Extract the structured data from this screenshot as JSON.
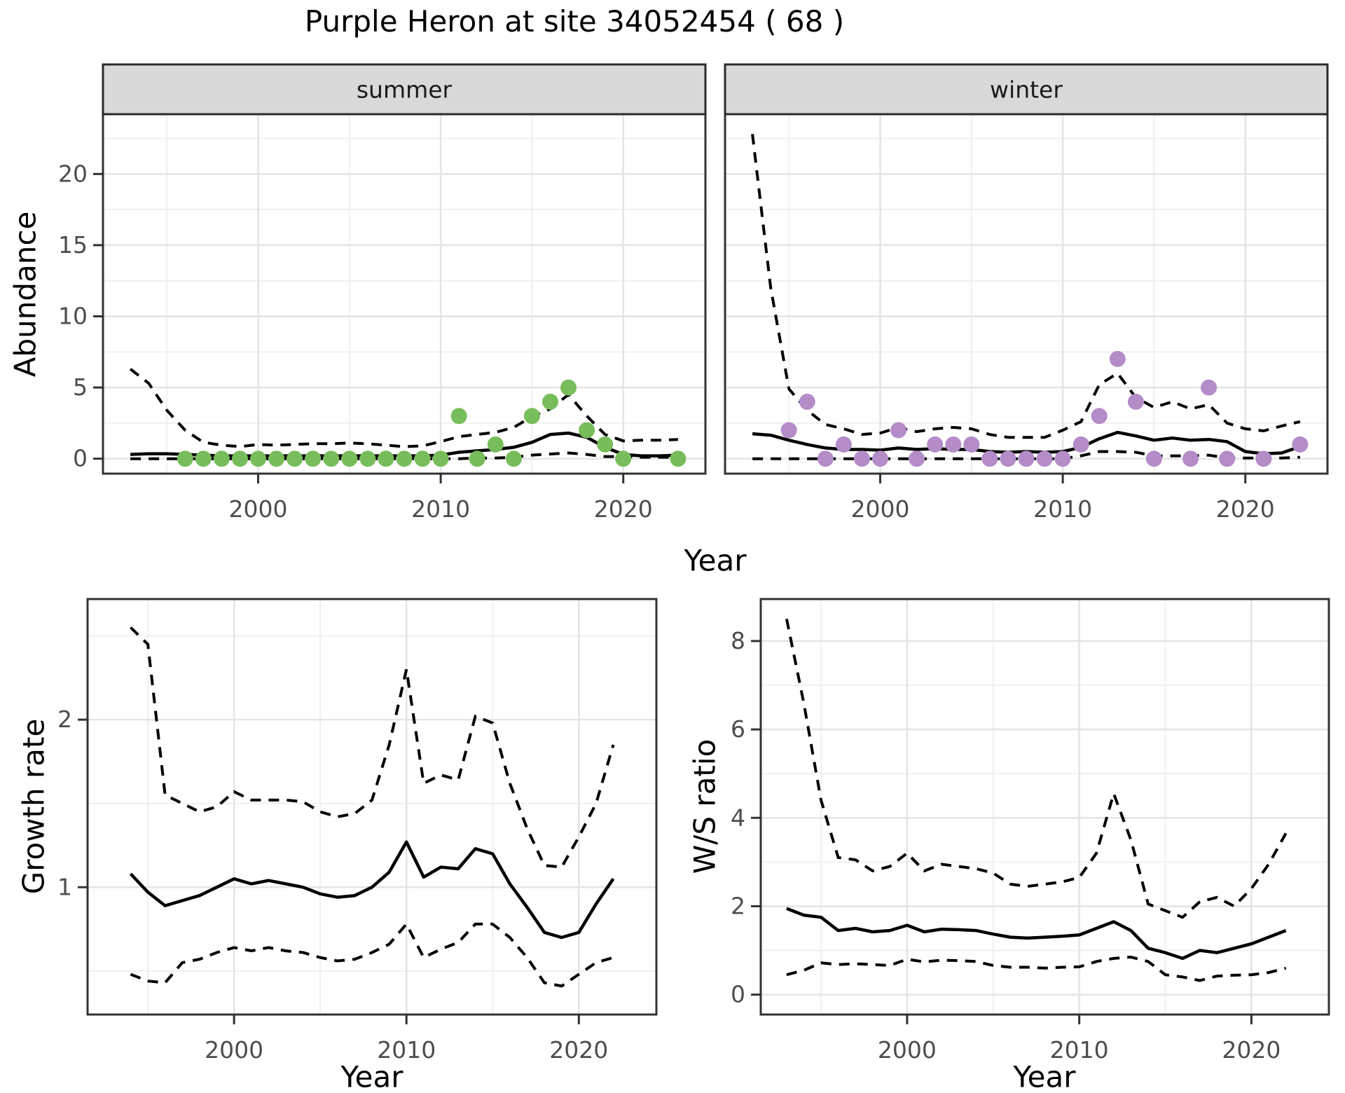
{
  "title": "Purple Heron at site 34052454 ( 68 )",
  "colors": {
    "summer_point": "#77bd5b",
    "winter_point": "#b48cc8",
    "line": "#000000",
    "strip_bg": "#d9d9d9",
    "strip_border": "#2b2b2b",
    "panel_border": "#333333",
    "grid_major": "#e4e4e4",
    "grid_minor": "#f0f0f0",
    "tick_mark": "#333333",
    "tick_label": "#4d4d4d",
    "background": "#ffffff"
  },
  "chart_data": [
    {
      "id": "abundance",
      "type": "line",
      "xlabel": "Year",
      "ylabel": "Abundance",
      "xlim": [
        1991.5,
        2024.5
      ],
      "ylim": [
        -1.05,
        24.2
      ],
      "x_major": [
        2000,
        2010,
        2020
      ],
      "x_minor": [
        1995,
        2005,
        2015
      ],
      "y_major": [
        0,
        5,
        10,
        15,
        20
      ],
      "y_minor": [
        2.5,
        7.5,
        12.5,
        17.5,
        22.5
      ],
      "x_tick_labels": [
        "2000",
        "2010",
        "2020"
      ],
      "y_tick_labels": [
        "0",
        "5",
        "10",
        "15",
        "20"
      ],
      "legend_position": "none",
      "facets": [
        {
          "label": "summer",
          "point_color": "#77bd5b",
          "points": {
            "x": [
              1996,
              1997,
              1998,
              1999,
              2000,
              2001,
              2002,
              2003,
              2004,
              2005,
              2006,
              2007,
              2008,
              2009,
              2010,
              2011,
              2012,
              2013,
              2014,
              2015,
              2016,
              2017,
              2018,
              2019,
              2020,
              2023
            ],
            "y": [
              0,
              0,
              0,
              0,
              0,
              0,
              0,
              0,
              0,
              0,
              0,
              0,
              0,
              0,
              0,
              3,
              0,
              1,
              0,
              3,
              4,
              5,
              2,
              1,
              0,
              0
            ]
          },
          "median": {
            "x": [
              1993,
              1994,
              1995,
              1996,
              1997,
              1998,
              1999,
              2000,
              2001,
              2002,
              2003,
              2004,
              2005,
              2006,
              2007,
              2008,
              2009,
              2010,
              2011,
              2012,
              2013,
              2014,
              2015,
              2016,
              2017,
              2018,
              2019,
              2020,
              2021,
              2022,
              2023
            ],
            "y": [
              0.3,
              0.35,
              0.35,
              0.3,
              0.25,
              0.2,
              0.2,
              0.2,
              0.2,
              0.2,
              0.2,
              0.2,
              0.2,
              0.2,
              0.2,
              0.2,
              0.2,
              0.25,
              0.45,
              0.55,
              0.65,
              0.8,
              1.15,
              1.7,
              1.8,
              1.5,
              0.8,
              0.3,
              0.2,
              0.2,
              0.25
            ]
          },
          "upper": {
            "x": [
              1993,
              1994,
              1995,
              1996,
              1997,
              1998,
              1999,
              2000,
              2001,
              2002,
              2003,
              2004,
              2005,
              2006,
              2007,
              2008,
              2009,
              2010,
              2011,
              2012,
              2013,
              2014,
              2015,
              2016,
              2017,
              2018,
              2019,
              2020,
              2021,
              2022,
              2023
            ],
            "y": [
              6.3,
              5.3,
              3.4,
              2.0,
              1.15,
              0.95,
              0.85,
              1.0,
              0.95,
              1.0,
              1.05,
              1.05,
              1.1,
              1.05,
              0.95,
              0.85,
              0.9,
              1.2,
              1.55,
              1.7,
              1.85,
              2.2,
              2.95,
              3.5,
              4.5,
              3.0,
              1.7,
              1.25,
              1.3,
              1.3,
              1.35
            ]
          },
          "lower": {
            "x": [
              1993,
              1994,
              1995,
              1996,
              1997,
              1998,
              1999,
              2000,
              2001,
              2002,
              2003,
              2004,
              2005,
              2006,
              2007,
              2008,
              2009,
              2010,
              2011,
              2012,
              2013,
              2014,
              2015,
              2016,
              2017,
              2018,
              2019,
              2020,
              2021,
              2022,
              2023
            ],
            "y": [
              0,
              0,
              0,
              0,
              0,
              0,
              0,
              0,
              0,
              0,
              0,
              0,
              0,
              0,
              0,
              0,
              0,
              0,
              0,
              0.05,
              0.05,
              0.1,
              0.25,
              0.33,
              0.4,
              0.3,
              0.15,
              0.15,
              0.1,
              0.1,
              0.1
            ]
          }
        },
        {
          "label": "winter",
          "point_color": "#b48cc8",
          "points": {
            "x": [
              1995,
              1996,
              1997,
              1998,
              1999,
              2000,
              2001,
              2002,
              2003,
              2004,
              2005,
              2006,
              2007,
              2008,
              2009,
              2010,
              2011,
              2012,
              2013,
              2014,
              2015,
              2017,
              2018,
              2019,
              2021,
              2023
            ],
            "y": [
              2,
              4,
              0,
              1,
              0,
              0,
              2,
              0,
              1,
              1,
              1,
              0,
              0,
              0,
              0,
              0,
              1,
              3,
              7,
              4,
              0,
              0,
              5,
              0,
              0,
              1
            ]
          },
          "median": {
            "x": [
              1993,
              1994,
              1995,
              1996,
              1997,
              1998,
              1999,
              2000,
              2001,
              2002,
              2003,
              2004,
              2005,
              2006,
              2007,
              2008,
              2009,
              2010,
              2011,
              2012,
              2013,
              2014,
              2015,
              2016,
              2017,
              2018,
              2019,
              2020,
              2021,
              2022,
              2023
            ],
            "y": [
              1.75,
              1.65,
              1.3,
              1.0,
              0.75,
              0.65,
              0.65,
              0.6,
              0.75,
              0.65,
              0.7,
              0.65,
              0.65,
              0.5,
              0.45,
              0.5,
              0.45,
              0.5,
              0.8,
              1.4,
              1.85,
              1.6,
              1.3,
              1.45,
              1.3,
              1.35,
              1.2,
              0.5,
              0.35,
              0.4,
              0.85
            ]
          },
          "upper": {
            "x": [
              1993,
              1994,
              1995,
              1996,
              1997,
              1998,
              1999,
              2000,
              2001,
              2002,
              2003,
              2004,
              2005,
              2006,
              2007,
              2008,
              2009,
              2010,
              2011,
              2012,
              2013,
              2014,
              2015,
              2016,
              2017,
              2018,
              2019,
              2020,
              2021,
              2022,
              2023
            ],
            "y": [
              22.8,
              12.0,
              4.9,
              3.4,
              2.4,
              2.1,
              1.7,
              1.8,
              2.2,
              1.9,
              2.1,
              2.2,
              2.1,
              1.7,
              1.5,
              1.5,
              1.5,
              2.0,
              2.6,
              5.2,
              6.0,
              4.3,
              3.6,
              4.0,
              3.5,
              3.8,
              2.5,
              2.1,
              1.95,
              2.3,
              2.6
            ]
          },
          "lower": {
            "x": [
              1993,
              1994,
              1995,
              1996,
              1997,
              1998,
              1999,
              2000,
              2001,
              2002,
              2003,
              2004,
              2005,
              2006,
              2007,
              2008,
              2009,
              2010,
              2011,
              2012,
              2013,
              2014,
              2015,
              2016,
              2017,
              2018,
              2019,
              2020,
              2021,
              2022,
              2023
            ],
            "y": [
              0,
              0,
              0,
              0,
              0,
              0,
              0,
              0,
              0,
              0,
              0,
              0,
              0,
              0,
              0,
              0,
              0,
              0,
              0.2,
              0.5,
              0.5,
              0.45,
              0.2,
              0.2,
              0.2,
              0.25,
              0.05,
              0.05,
              0.05,
              0.05,
              0.1
            ]
          }
        }
      ]
    },
    {
      "id": "growth_rate",
      "type": "line",
      "xlabel": "Year",
      "ylabel": "Growth rate",
      "xlim": [
        1991.5,
        2024.5
      ],
      "ylim": [
        0.24,
        2.72
      ],
      "x_major": [
        2000,
        2010,
        2020
      ],
      "x_minor": [
        1995,
        2005,
        2015
      ],
      "y_major": [
        1,
        2
      ],
      "y_minor": [
        0.5,
        1.5,
        2.5
      ],
      "x_tick_labels": [
        "2000",
        "2010",
        "2020"
      ],
      "y_tick_labels": [
        "1",
        "2"
      ],
      "legend_position": "none",
      "series": {
        "median": {
          "x": [
            1994,
            1995,
            1996,
            1997,
            1998,
            1999,
            2000,
            2001,
            2002,
            2003,
            2004,
            2005,
            2006,
            2007,
            2008,
            2009,
            2010,
            2011,
            2012,
            2013,
            2014,
            2015,
            2016,
            2017,
            2018,
            2019,
            2020,
            2021,
            2022
          ],
          "y": [
            1.08,
            0.97,
            0.89,
            0.92,
            0.95,
            1.0,
            1.05,
            1.02,
            1.04,
            1.02,
            1.0,
            0.96,
            0.94,
            0.95,
            1.0,
            1.09,
            1.27,
            1.06,
            1.12,
            1.11,
            1.23,
            1.2,
            1.02,
            0.88,
            0.73,
            0.7,
            0.73,
            0.9,
            1.05
          ]
        },
        "upper": {
          "x": [
            1994,
            1995,
            1996,
            1997,
            1998,
            1999,
            2000,
            2001,
            2002,
            2003,
            2004,
            2005,
            2006,
            2007,
            2008,
            2009,
            2010,
            2011,
            2012,
            2013,
            2014,
            2015,
            2016,
            2017,
            2018,
            2019,
            2020,
            2021,
            2022
          ],
          "y": [
            2.55,
            2.45,
            1.55,
            1.5,
            1.45,
            1.48,
            1.57,
            1.52,
            1.52,
            1.52,
            1.51,
            1.45,
            1.42,
            1.44,
            1.52,
            1.85,
            2.3,
            1.62,
            1.67,
            1.64,
            2.02,
            1.98,
            1.62,
            1.35,
            1.13,
            1.12,
            1.3,
            1.5,
            1.85
          ]
        },
        "lower": {
          "x": [
            1994,
            1995,
            1996,
            1997,
            1998,
            1999,
            2000,
            2001,
            2002,
            2003,
            2004,
            2005,
            2006,
            2007,
            2008,
            2009,
            2010,
            2011,
            2012,
            2013,
            2014,
            2015,
            2016,
            2017,
            2018,
            2019,
            2020,
            2021,
            2022
          ],
          "y": [
            0.48,
            0.44,
            0.43,
            0.55,
            0.57,
            0.61,
            0.64,
            0.62,
            0.64,
            0.62,
            0.61,
            0.58,
            0.56,
            0.57,
            0.61,
            0.66,
            0.78,
            0.58,
            0.63,
            0.67,
            0.78,
            0.78,
            0.7,
            0.58,
            0.43,
            0.41,
            0.48,
            0.55,
            0.58
          ]
        }
      }
    },
    {
      "id": "ws_ratio",
      "type": "line",
      "xlabel": "Year",
      "ylabel": "W/S ratio",
      "xlim": [
        1991.5,
        2024.5
      ],
      "ylim": [
        -0.45,
        8.95
      ],
      "x_major": [
        2000,
        2010,
        2020
      ],
      "x_minor": [
        1995,
        2005,
        2015
      ],
      "y_major": [
        0,
        2,
        4,
        6,
        8
      ],
      "y_minor": [
        1,
        3,
        5,
        7
      ],
      "x_tick_labels": [
        "2000",
        "2010",
        "2020"
      ],
      "y_tick_labels": [
        "0",
        "2",
        "4",
        "6",
        "8"
      ],
      "legend_position": "none",
      "series": {
        "median": {
          "x": [
            1993,
            1994,
            1995,
            1996,
            1997,
            1998,
            1999,
            2000,
            2001,
            2002,
            2003,
            2004,
            2005,
            2006,
            2007,
            2008,
            2009,
            2010,
            2011,
            2012,
            2013,
            2014,
            2015,
            2016,
            2017,
            2018,
            2019,
            2020,
            2021,
            2022
          ],
          "y": [
            1.95,
            1.8,
            1.75,
            1.45,
            1.5,
            1.42,
            1.45,
            1.57,
            1.42,
            1.48,
            1.47,
            1.45,
            1.37,
            1.3,
            1.28,
            1.3,
            1.32,
            1.35,
            1.5,
            1.65,
            1.45,
            1.05,
            0.95,
            0.82,
            1.0,
            0.95,
            1.05,
            1.15,
            1.3,
            1.45
          ]
        },
        "upper": {
          "x": [
            1993,
            1994,
            1995,
            1996,
            1997,
            1998,
            1999,
            2000,
            2001,
            2002,
            2003,
            2004,
            2005,
            2006,
            2007,
            2008,
            2009,
            2010,
            2011,
            2012,
            2013,
            2014,
            2015,
            2016,
            2017,
            2018,
            2019,
            2020,
            2021,
            2022
          ],
          "y": [
            8.5,
            6.6,
            4.4,
            3.1,
            3.05,
            2.8,
            2.9,
            3.2,
            2.8,
            2.95,
            2.9,
            2.85,
            2.75,
            2.5,
            2.45,
            2.5,
            2.55,
            2.65,
            3.2,
            4.55,
            3.5,
            2.05,
            1.9,
            1.75,
            2.1,
            2.2,
            2.0,
            2.4,
            2.95,
            3.65
          ]
        },
        "lower": {
          "x": [
            1993,
            1994,
            1995,
            1996,
            1997,
            1998,
            1999,
            2000,
            2001,
            2002,
            2003,
            2004,
            2005,
            2006,
            2007,
            2008,
            2009,
            2010,
            2011,
            2012,
            2013,
            2014,
            2015,
            2016,
            2017,
            2018,
            2019,
            2020,
            2021,
            2022
          ],
          "y": [
            0.45,
            0.55,
            0.72,
            0.68,
            0.7,
            0.68,
            0.66,
            0.8,
            0.74,
            0.78,
            0.77,
            0.75,
            0.66,
            0.62,
            0.62,
            0.6,
            0.62,
            0.63,
            0.75,
            0.82,
            0.85,
            0.75,
            0.45,
            0.4,
            0.32,
            0.42,
            0.44,
            0.45,
            0.5,
            0.6
          ]
        }
      }
    }
  ]
}
